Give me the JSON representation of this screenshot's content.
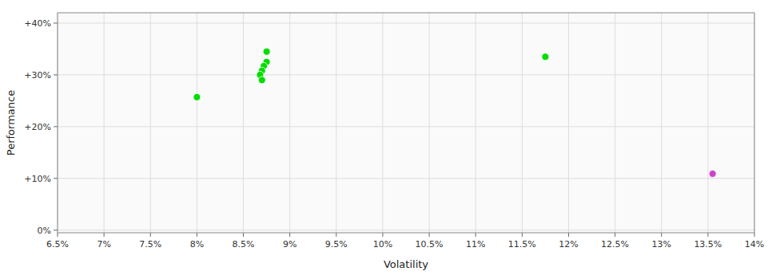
{
  "chart_data": {
    "type": "scatter",
    "x_label": "Volatility",
    "y_label": "Performance",
    "xlim": [
      0.065,
      0.14
    ],
    "ylim": [
      -0.005,
      0.42
    ],
    "xticks": [
      {
        "value": 0.065,
        "label": "6.5%"
      },
      {
        "value": 0.07,
        "label": "7%"
      },
      {
        "value": 0.075,
        "label": "7.5%"
      },
      {
        "value": 0.08,
        "label": "8%"
      },
      {
        "value": 0.085,
        "label": "8.5%"
      },
      {
        "value": 0.09,
        "label": "9%"
      },
      {
        "value": 0.095,
        "label": "9.5%"
      },
      {
        "value": 0.1,
        "label": "10%"
      },
      {
        "value": 0.105,
        "label": "10.5%"
      },
      {
        "value": 0.11,
        "label": "11%"
      },
      {
        "value": 0.115,
        "label": "11.5%"
      },
      {
        "value": 0.12,
        "label": "12%"
      },
      {
        "value": 0.125,
        "label": "12.5%"
      },
      {
        "value": 0.13,
        "label": "13%"
      },
      {
        "value": 0.135,
        "label": "13.5%"
      },
      {
        "value": 0.14,
        "label": "14%"
      }
    ],
    "yticks": [
      {
        "value": 0.0,
        "label": "0%"
      },
      {
        "value": 0.1,
        "label": "+10%"
      },
      {
        "value": 0.2,
        "label": "+20%"
      },
      {
        "value": 0.3,
        "label": "+30%"
      },
      {
        "value": 0.4,
        "label": "+40%"
      }
    ],
    "grid": true,
    "series": [
      {
        "color": "#00dd00",
        "x": [
          0.0875,
          0.0875,
          0.0872,
          0.087,
          0.0868,
          0.087,
          0.08,
          0.1175
        ],
        "values": [
          0.345,
          0.325,
          0.317,
          0.308,
          0.3,
          0.29,
          0.257,
          0.335
        ]
      },
      {
        "color": "#cc44cc",
        "x": [
          0.1355
        ],
        "values": [
          0.109
        ]
      }
    ]
  }
}
